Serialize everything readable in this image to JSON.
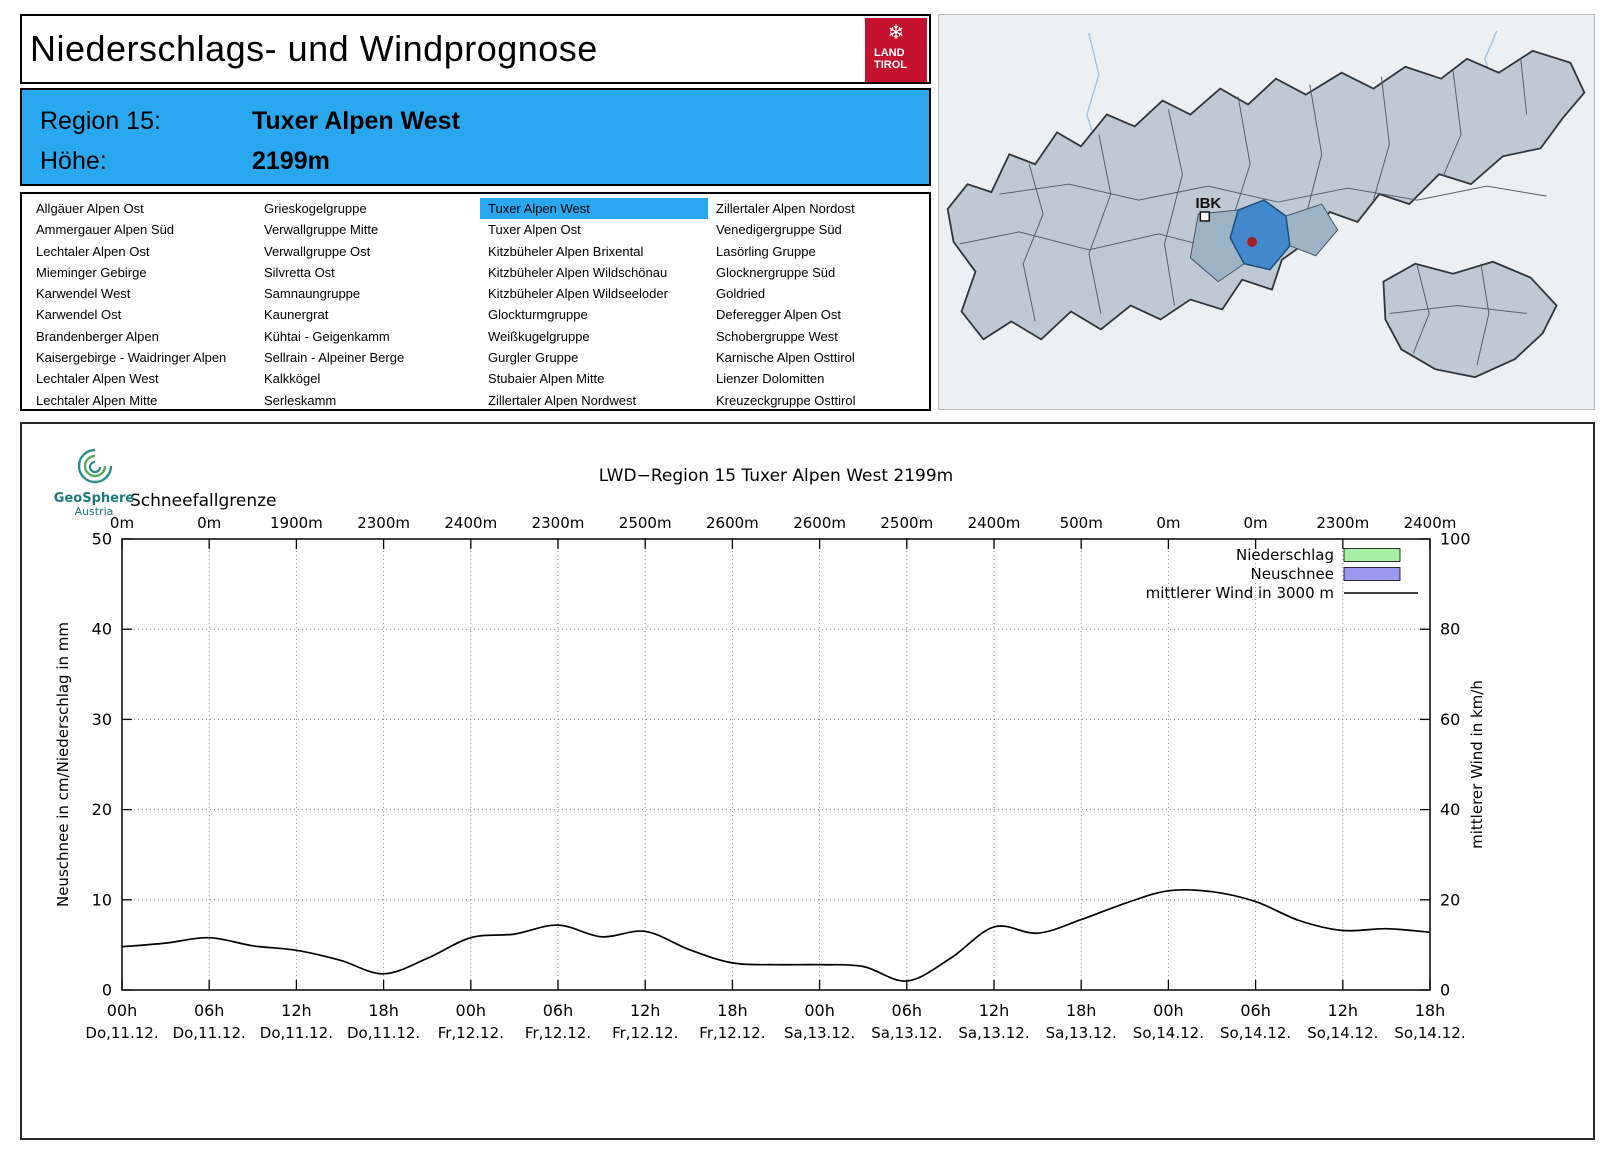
{
  "colors": {
    "accent_blue": "#29a8f0",
    "logo_red": "#c4112e",
    "map_highlight": "#4189cc",
    "legend_green": "#a6f0a6",
    "legend_blue": "#9a9aee",
    "wind_line": "#000000"
  },
  "header": {
    "title": "Niederschlags- und Windprognose",
    "logo_line1": "LAND",
    "logo_line2": "TIROL",
    "logo_icon": "snowflake-icon"
  },
  "region_info": {
    "region_label": "Region 15:",
    "region_name": "Tuxer Alpen West",
    "height_label": "Höhe:",
    "height_value": "2199m"
  },
  "region_list": {
    "selected": "Tuxer Alpen West",
    "columns": [
      [
        "Allgäuer Alpen Ost",
        "Ammergauer Alpen Süd",
        "Lechtaler Alpen Ost",
        "Mieminger Gebirge",
        "Karwendel West",
        "Karwendel Ost",
        "Brandenberger Alpen",
        "Kaisergebirge - Waidringer Alpen",
        "Lechtaler Alpen West",
        "Lechtaler Alpen Mitte"
      ],
      [
        "Grieskogelgruppe",
        "Verwallgruppe Mitte",
        "Verwallgruppe Ost",
        "Silvretta Ost",
        "Samnaungruppe",
        "Kaunergrat",
        "Kühtai - Geigenkamm",
        "Sellrain - Alpeiner Berge",
        "Kalkkögel",
        "Serleskamm"
      ],
      [
        "Tuxer Alpen West",
        "Tuxer Alpen Ost",
        "Kitzbüheler Alpen Brixental",
        "Kitzbüheler Alpen Wildschönau",
        "Kitzbüheler Alpen Wildseeloder",
        "Glockturmgruppe",
        "Weißkugelgruppe",
        "Gurgler Gruppe",
        "Stubaier Alpen Mitte",
        "Zillertaler Alpen Nordwest"
      ],
      [
        "Zillertaler Alpen Nordost",
        "Venedigergruppe Süd",
        "Lasörling Gruppe",
        "Glocknergruppe Süd",
        "Goldried",
        "Deferegger Alpen Ost",
        "Schobergruppe West",
        "Karnische Alpen Osttirol",
        "Lienzer Dolomitten",
        "Kreuzeckgruppe Osttirol"
      ]
    ]
  },
  "map": {
    "marker_label": "IBK"
  },
  "geosphere": {
    "line1": "GeoSphere",
    "line2": "Austria"
  },
  "chart_data": {
    "type": "line",
    "title": "LWD−Region 15 Tuxer Alpen West 2199m",
    "snowline_label": "Schneefallgrenze",
    "snowline_values": [
      "0m",
      "0m",
      "1900m",
      "2300m",
      "2400m",
      "2300m",
      "2500m",
      "2600m",
      "2600m",
      "2500m",
      "2400m",
      "500m",
      "0m",
      "0m",
      "2300m",
      "2400m"
    ],
    "x_tick_hours": [
      "00h",
      "06h",
      "12h",
      "18h",
      "00h",
      "06h",
      "12h",
      "18h",
      "00h",
      "06h",
      "12h",
      "18h",
      "00h",
      "06h",
      "12h",
      "18h"
    ],
    "x_tick_days": [
      "Do,11.12.",
      "Do,11.12.",
      "Do,11.12.",
      "Do,11.12.",
      "Fr,12.12.",
      "Fr,12.12.",
      "Fr,12.12.",
      "Fr,12.12.",
      "Sa,13.12.",
      "Sa,13.12.",
      "Sa,13.12.",
      "Sa,13.12.",
      "So,14.12.",
      "So,14.12.",
      "So,14.12.",
      "So,14.12."
    ],
    "ylabel_left": "Neuschnee in cm/Niederschlag in mm",
    "ylabel_right": "mittlerer Wind in km/h",
    "ylim_left": [
      0,
      50
    ],
    "ylim_right": [
      0,
      100
    ],
    "yticks_left": [
      0,
      10,
      20,
      30,
      40,
      50
    ],
    "yticks_right": [
      0,
      20,
      40,
      60,
      80,
      100
    ],
    "grid": true,
    "legend_position": "top-right-inside",
    "legend": [
      {
        "label": "Niederschlag",
        "swatch": "box",
        "color": "#a6f0a6"
      },
      {
        "label": "Neuschnee",
        "swatch": "box",
        "color": "#9a9aee"
      },
      {
        "label": "mittlerer Wind in 3000 m",
        "swatch": "line",
        "color": "#000000"
      }
    ],
    "series": [
      {
        "name": "Niederschlag",
        "type": "bar",
        "axis": "left",
        "unit": "mm",
        "values_note": "no visible bars – 0 over whole period"
      },
      {
        "name": "Neuschnee",
        "type": "bar",
        "axis": "left",
        "unit": "cm",
        "values_note": "no visible bars – 0 over whole period"
      },
      {
        "name": "mittlerer Wind in 3000 m",
        "type": "line",
        "axis": "right",
        "unit": "km/h",
        "x_hours": [
          0,
          3,
          6,
          9,
          12,
          15,
          18,
          21,
          24,
          27,
          30,
          33,
          36,
          39,
          42,
          45,
          48,
          51,
          54,
          57,
          60,
          63,
          66,
          69,
          72,
          75,
          78,
          81,
          84,
          87,
          90
        ],
        "values": [
          9.6,
          10.4,
          11.6,
          9.8,
          8.8,
          6.6,
          3.6,
          7.0,
          11.6,
          12.4,
          14.4,
          11.8,
          13.0,
          9.0,
          6.0,
          5.6,
          5.6,
          5.2,
          2.0,
          7.0,
          14.0,
          12.6,
          15.6,
          19.2,
          22.0,
          21.8,
          19.6,
          15.4,
          13.2,
          13.6,
          12.8
        ]
      }
    ]
  }
}
